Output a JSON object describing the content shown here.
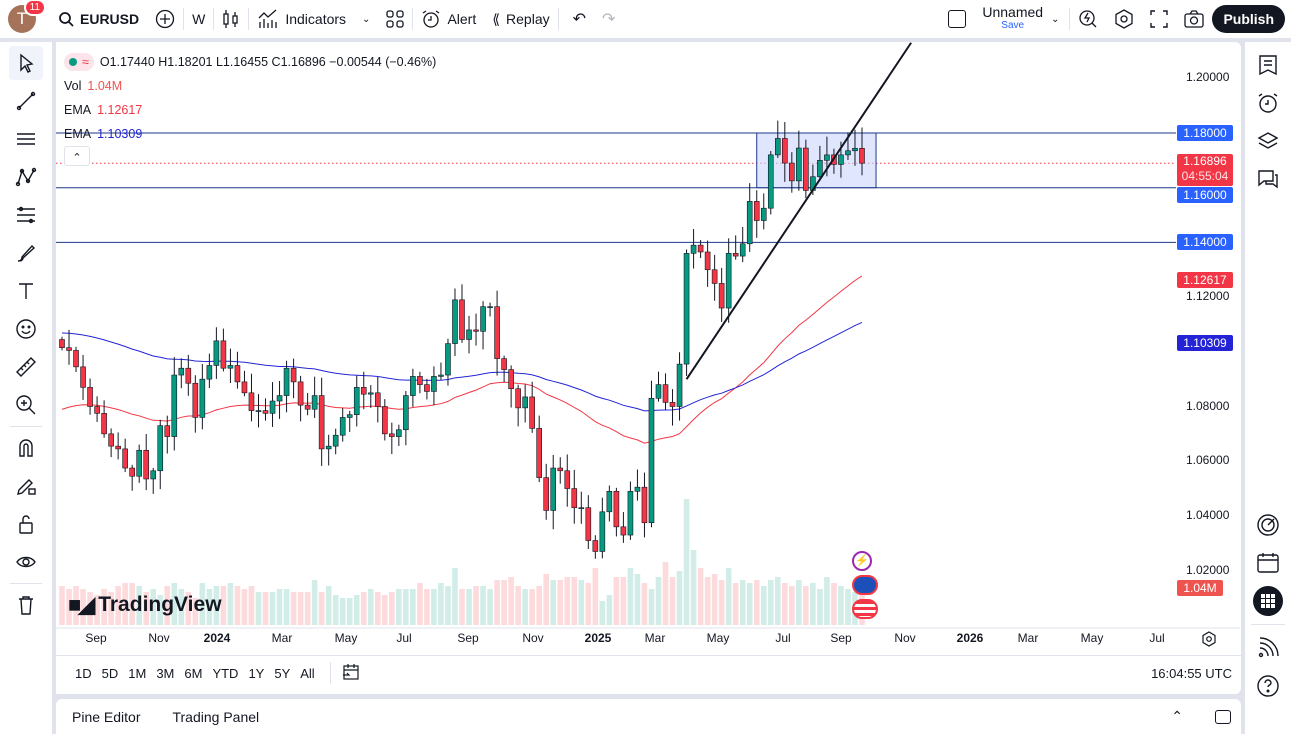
{
  "toolbar": {
    "avatar_letter": "T",
    "notifications": "11",
    "symbol": "EURUSD",
    "interval": "W",
    "indicators_label": "Indicators",
    "alert_label": "Alert",
    "replay_label": "Replay",
    "layout_name": "Unnamed",
    "save_label": "Save",
    "publish_label": "Publish"
  },
  "legend": {
    "ohlc": "O1.17440 H1.18201 L1.16455 C1.16896 −0.00544 (−0.46%)",
    "vol_label": "Vol",
    "vol_value": "1.04M",
    "ema1_label": "EMA",
    "ema1_value": "1.12617",
    "ema2_label": "EMA",
    "ema2_value": "1.10309"
  },
  "price_axis": {
    "ticks": [
      "1.20000",
      "1.12000",
      "1.08000",
      "1.06000",
      "1.04000",
      "1.02000"
    ],
    "labels": {
      "level_118": "1.18000",
      "level_116": "1.16000",
      "level_114": "1.14000",
      "current": "1.16896",
      "countdown": "04:55:04",
      "ema1": "1.12617",
      "ema2": "1.10309",
      "volume": "1.04M"
    }
  },
  "time_axis": {
    "ticks": [
      "Sep",
      "Nov",
      "2024",
      "Mar",
      "May",
      "Jul",
      "Sep",
      "Nov",
      "2025",
      "Mar",
      "May",
      "Jul",
      "Sep",
      "Nov",
      "2026",
      "Mar",
      "May",
      "Jul"
    ]
  },
  "range_bar": {
    "buttons": [
      "1D",
      "5D",
      "1M",
      "3M",
      "6M",
      "YTD",
      "1Y",
      "5Y",
      "All"
    ],
    "clock": "16:04:55 UTC"
  },
  "bottom_panel": {
    "tabs": [
      "Pine Editor",
      "Trading Panel"
    ]
  },
  "watermark": "TradingView",
  "colors": {
    "up": "#089981",
    "down": "#f23645",
    "ema1": "#f23645",
    "ema2": "#2424d6",
    "levels": "#2962ff",
    "box_fill": "#c9d6fb"
  },
  "chart_data": {
    "type": "candlestick",
    "symbol": "EURUSD",
    "interval": "W",
    "first_week": "2023-07-28",
    "ylim": [
      1.005,
      1.215
    ],
    "closes": [
      1.1015,
      1.1005,
      1.0945,
      1.087,
      1.08,
      1.0775,
      1.07,
      1.0655,
      1.0645,
      1.0575,
      1.0545,
      1.064,
      1.0535,
      1.0565,
      1.073,
      1.069,
      1.0915,
      1.094,
      1.0885,
      1.076,
      1.09,
      1.095,
      1.104,
      1.094,
      1.095,
      1.089,
      1.085,
      1.0785,
      1.0785,
      1.0775,
      1.082,
      1.084,
      1.094,
      1.089,
      1.0805,
      1.079,
      1.084,
      1.0645,
      1.0655,
      1.0695,
      1.076,
      1.077,
      1.087,
      1.0845,
      1.085,
      1.08,
      1.07,
      1.069,
      1.0715,
      1.084,
      1.091,
      1.088,
      1.0855,
      1.091,
      1.0915,
      1.103,
      1.119,
      1.1045,
      1.108,
      1.1075,
      1.1165,
      1.1165,
      1.0975,
      1.0935,
      1.0865,
      1.0795,
      1.0835,
      1.072,
      1.054,
      1.042,
      1.0575,
      1.0565,
      1.05,
      1.043,
      1.043,
      1.031,
      1.027,
      1.0415,
      1.049,
      1.036,
      1.033,
      1.049,
      1.0505,
      1.0375,
      1.083,
      1.088,
      1.0815,
      1.08,
      1.0955,
      1.136,
      1.139,
      1.1365,
      1.13,
      1.125,
      1.116,
      1.136,
      1.135,
      1.1395,
      1.155,
      1.148,
      1.1525,
      1.172,
      1.178,
      1.169,
      1.1625,
      1.1745,
      1.159,
      1.164,
      1.17,
      1.172,
      1.1685,
      1.172,
      1.1735,
      1.1744,
      1.16896
    ],
    "last_candle": {
      "open": 1.1744,
      "high": 1.18201,
      "low": 1.16455,
      "close": 1.16896
    },
    "volumes_m": [
      1.3,
      1.2,
      1.3,
      1.2,
      1.1,
      1.0,
      1.2,
      1.1,
      1.3,
      1.4,
      1.4,
      1.3,
      1.1,
      1.2,
      1.0,
      1.3,
      1.4,
      1.2,
      1.1,
      0.9,
      1.4,
      1.2,
      1.3,
      1.3,
      1.4,
      1.3,
      1.2,
      1.3,
      1.1,
      1.1,
      1.1,
      1.2,
      1.2,
      1.1,
      1.1,
      1.1,
      1.5,
      1.1,
      1.3,
      1.0,
      0.9,
      0.9,
      1.0,
      1.1,
      1.2,
      1.1,
      1.0,
      1.1,
      1.2,
      1.2,
      1.2,
      1.4,
      1.2,
      1.2,
      1.4,
      1.3,
      1.9,
      1.2,
      1.2,
      1.3,
      1.3,
      1.2,
      1.5,
      1.5,
      1.6,
      1.3,
      1.2,
      1.2,
      1.3,
      1.7,
      1.5,
      1.5,
      1.6,
      1.6,
      1.5,
      1.4,
      1.9,
      0.8,
      1.0,
      1.6,
      1.6,
      1.9,
      1.7,
      1.4,
      1.2,
      1.6,
      2.1,
      1.6,
      1.8,
      4.2,
      2.5,
      1.9,
      1.6,
      1.7,
      1.5,
      1.9,
      1.4,
      1.5,
      1.4,
      1.5,
      1.3,
      1.5,
      1.6,
      1.4,
      1.3,
      1.5,
      1.3,
      1.4,
      1.2,
      1.6,
      1.4,
      1.3,
      1.2,
      1.1,
      1.04
    ],
    "ema": [
      {
        "value": 1.12617
      },
      {
        "value": 1.10309
      }
    ],
    "drawings": {
      "horizontal_levels": [
        1.18,
        1.16,
        1.14
      ],
      "rectangle": {
        "start": "2025-06-20",
        "end": "2025-10-17",
        "low": 1.16,
        "high": 1.18
      },
      "trendline": {
        "start": {
          "date": "2025-04-11",
          "price": 1.09
        },
        "end": {
          "date": "2025-11-21",
          "price": 1.213
        }
      }
    }
  }
}
